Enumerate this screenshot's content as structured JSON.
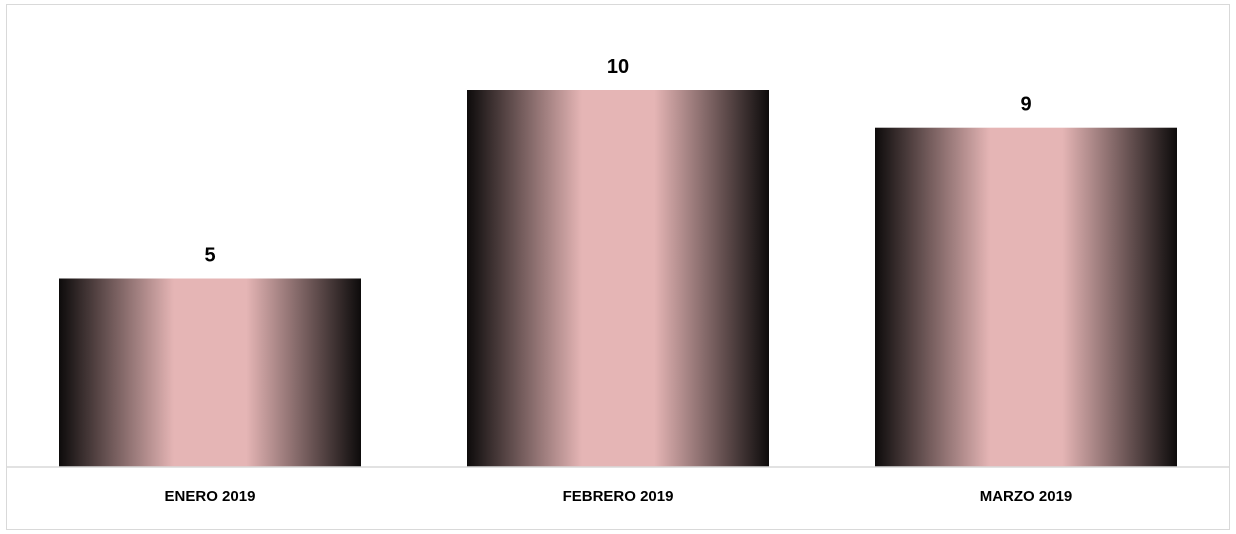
{
  "chart_data": {
    "type": "bar",
    "categories": [
      "ENERO 2019",
      "FEBRERO 2019",
      "MARZO 2019"
    ],
    "values": [
      5,
      10,
      9
    ],
    "title": "",
    "xlabel": "",
    "ylabel": "",
    "ylim": [
      0,
      10
    ],
    "grid": false,
    "legend": "none",
    "data_labels": true,
    "colors": {
      "bar_edge": "#0d0b0b",
      "bar_center": "#e5b5b5",
      "axis": "#d9d9d9"
    }
  }
}
